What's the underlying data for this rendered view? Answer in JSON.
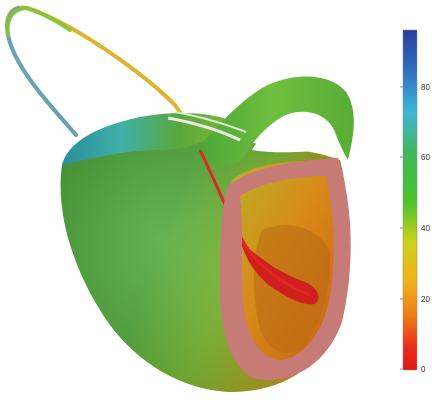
{
  "image": {
    "subject": "heart-surface-render",
    "background": "#ffffff"
  },
  "colorbar": {
    "ticks": [
      "80",
      "60",
      "40",
      "20",
      "0"
    ],
    "stops": [
      "#2a3f9c",
      "#2f6fc0",
      "#3fb6d6",
      "#3fb85a",
      "#49c22c",
      "#c8d21e",
      "#f2b21a",
      "#f07d15",
      "#e8301a",
      "#e01818"
    ]
  },
  "surface_colors": {
    "green": "#3e9a2e",
    "green_light": "#79c248",
    "cyan": "#2fa6b2",
    "yellow": "#d3c52a",
    "orange": "#d98719",
    "red": "#d11f1f",
    "wall": "#c77b77"
  }
}
